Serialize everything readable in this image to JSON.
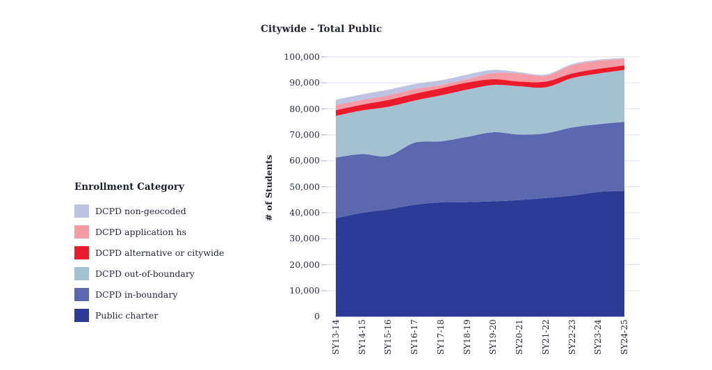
{
  "legend": {
    "title": "Enrollment Category"
  },
  "chart_data": {
    "type": "area",
    "stacked": true,
    "title": "Citywide - Total Public",
    "xlabel": "",
    "ylabel": "# of Students",
    "ylim": [
      0,
      100000
    ],
    "grid": true,
    "legend_position": "left",
    "categories": [
      "SY13-14",
      "SY14-15",
      "SY15-16",
      "SY16-17",
      "SY17-18",
      "SY18-19",
      "SY19-20",
      "SY20-21",
      "SY21-22",
      "SY22-23",
      "SY23-24",
      "SY24-25"
    ],
    "y_tick_labels": [
      "0",
      "10,000",
      "20,000",
      "30,000",
      "40,000",
      "50,000",
      "60,000",
      "70,000",
      "80,000",
      "90,000",
      "100,000"
    ],
    "series": [
      {
        "name": "Public charter",
        "color": "#2b3b96",
        "values": [
          37900,
          40000,
          41300,
          43100,
          44000,
          44100,
          44400,
          44900,
          45700,
          46600,
          48000,
          48400
        ]
      },
      {
        "name": "DCPD in-boundary",
        "color": "#5b68b0",
        "values": [
          23400,
          22600,
          20600,
          23900,
          23500,
          25100,
          26600,
          25200,
          24900,
          26200,
          26100,
          26600
        ]
      },
      {
        "name": "DCPD out-of-boundary",
        "color": "#a4c1d2",
        "values": [
          16000,
          16800,
          18900,
          16200,
          17700,
          18200,
          18200,
          18600,
          17700,
          19000,
          19500,
          20000
        ]
      },
      {
        "name": "DCPD alternative or citywide",
        "color": "#eb1b2c",
        "values": [
          2200,
          2200,
          2600,
          2600,
          2700,
          2700,
          2200,
          1800,
          2200,
          1800,
          1800,
          1700
        ]
      },
      {
        "name": "DCPD application hs",
        "color": "#f49ba5",
        "values": [
          2000,
          1800,
          1800,
          1800,
          1300,
          1300,
          2400,
          3100,
          2300,
          3100,
          3100,
          2500
        ]
      },
      {
        "name": "DCPD non-geocoded",
        "color": "#bec3e2",
        "values": [
          2000,
          2200,
          2200,
          2000,
          1800,
          1800,
          1200,
          500,
          400,
          500,
          400,
          400
        ]
      }
    ],
    "grid_color": "#dde1ef",
    "tick_color": "#a9aec5"
  }
}
